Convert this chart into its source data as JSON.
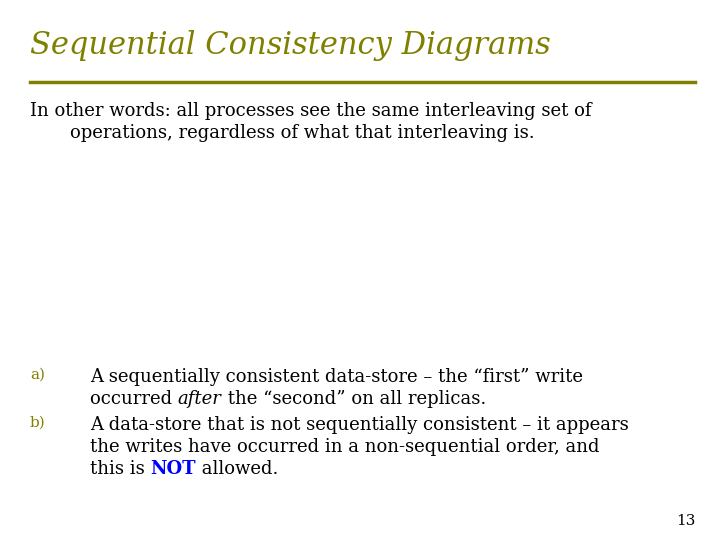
{
  "title": "Sequential Consistency Diagrams",
  "title_color": "#808000",
  "title_fontsize": 22,
  "body_text_line1": "In other words: all processes see the same interleaving set of",
  "body_text_line2": "operations, regardless of what that interleaving is.",
  "body_color": "#000000",
  "body_fontsize": 13,
  "item_a_label": "a)",
  "item_a_text_part1": "A sequentially consistent data-store – the “first” write",
  "item_a_text_part2_pre": "occurred ",
  "item_a_text_italic": "after",
  "item_a_text_part2_post": " the “second” on all replicas.",
  "item_b_label": "b)",
  "item_b_text_line1": "A data-store that is not sequentially consistent – it appears",
  "item_b_text_line2": "the writes have occurred in a non-sequential order, and",
  "item_b_text_line3_pre": "this is ",
  "item_b_text_NOT": "NOT",
  "item_b_text_line3_post": " allowed.",
  "item_color": "#000000",
  "item_fontsize": 13,
  "not_color": "#0000FF",
  "label_color": "#808000",
  "label_fontsize": 11,
  "divider_color": "#808000",
  "bg_color": "#FFFFFF",
  "page_number": "13",
  "page_number_color": "#000000",
  "page_number_fontsize": 11
}
